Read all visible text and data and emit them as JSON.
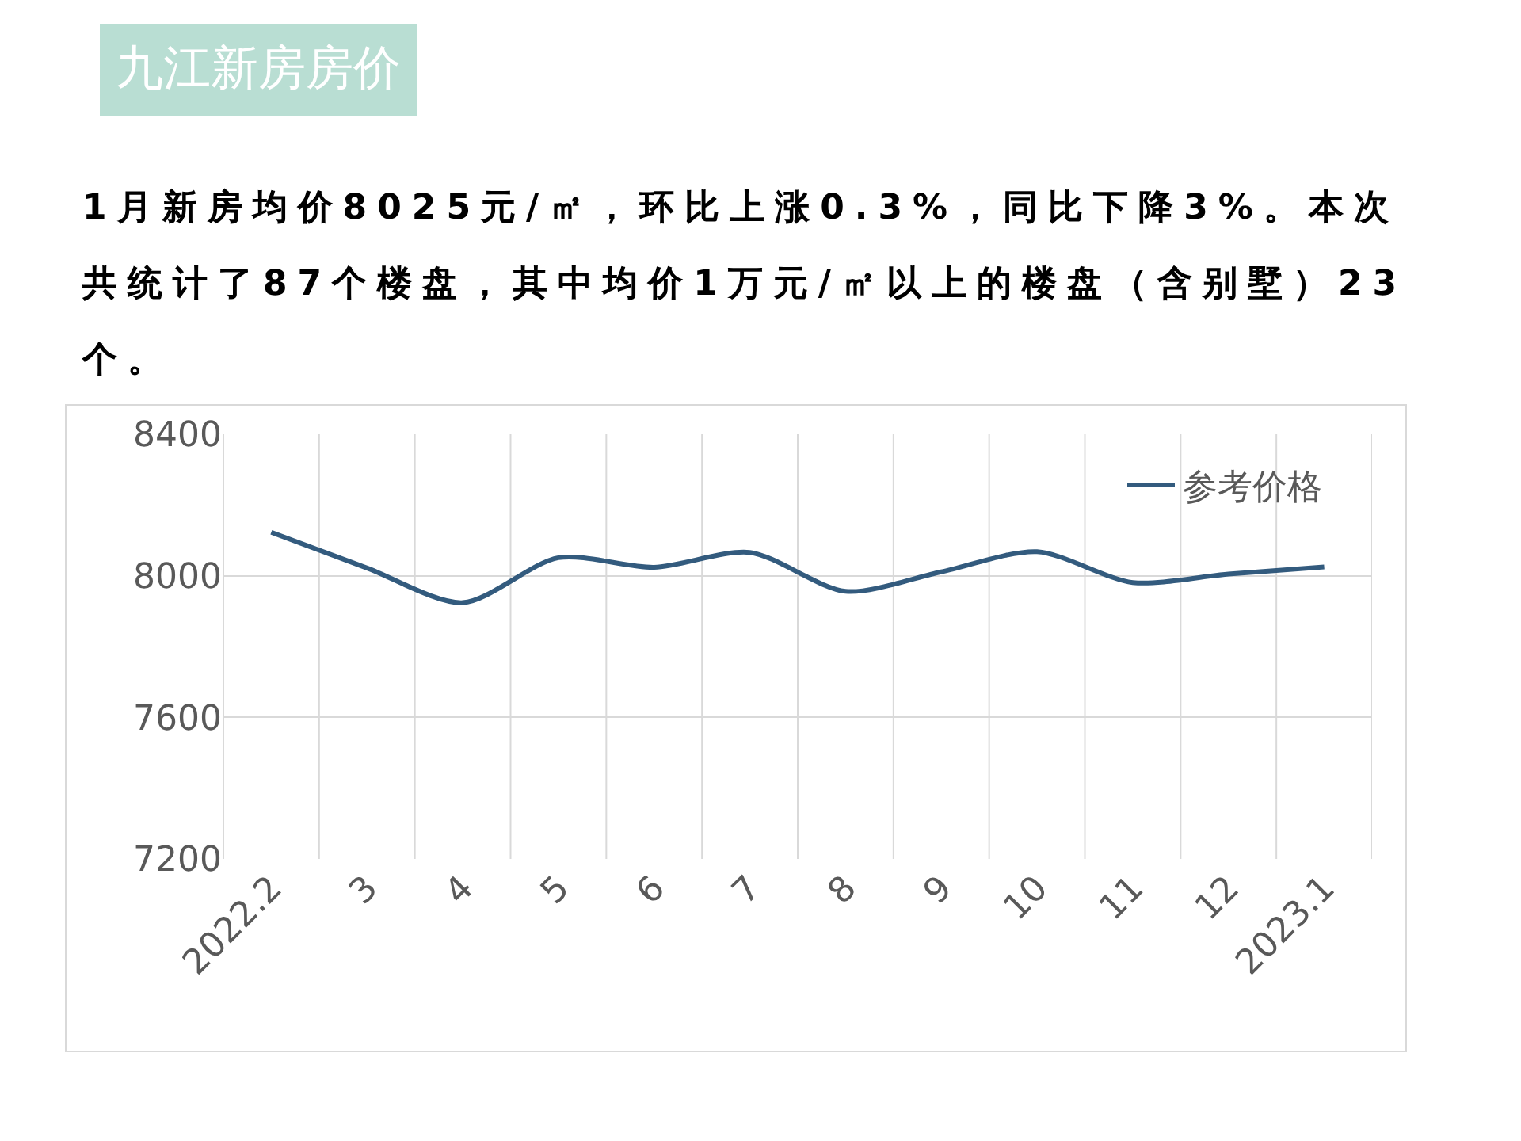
{
  "chart_data": {
    "type": "line",
    "title": "九江新房房价",
    "subtitle": "1月新房均价8025元/㎡，环比上涨0.3%，同比下降3%。本次共统计了87个楼盘，其中均价1万元/㎡以上的楼盘（含别墅）23个。",
    "categories": [
      "2022.2",
      "3",
      "4",
      "5",
      "6",
      "7",
      "8",
      "9",
      "10",
      "11",
      "12",
      "2023.1"
    ],
    "series": [
      {
        "name": "参考价格",
        "color": "#335b7e",
        "values": [
          8123,
          8022,
          7924,
          8051,
          8024,
          8066,
          7956,
          8011,
          8068,
          7981,
          8005,
          8025
        ]
      }
    ],
    "ylim": [
      7200,
      8400
    ],
    "yticks": [
      7200,
      7600,
      8000,
      8400
    ],
    "grid": true,
    "legend": "top right",
    "marker": "none",
    "line_style": "solid"
  }
}
